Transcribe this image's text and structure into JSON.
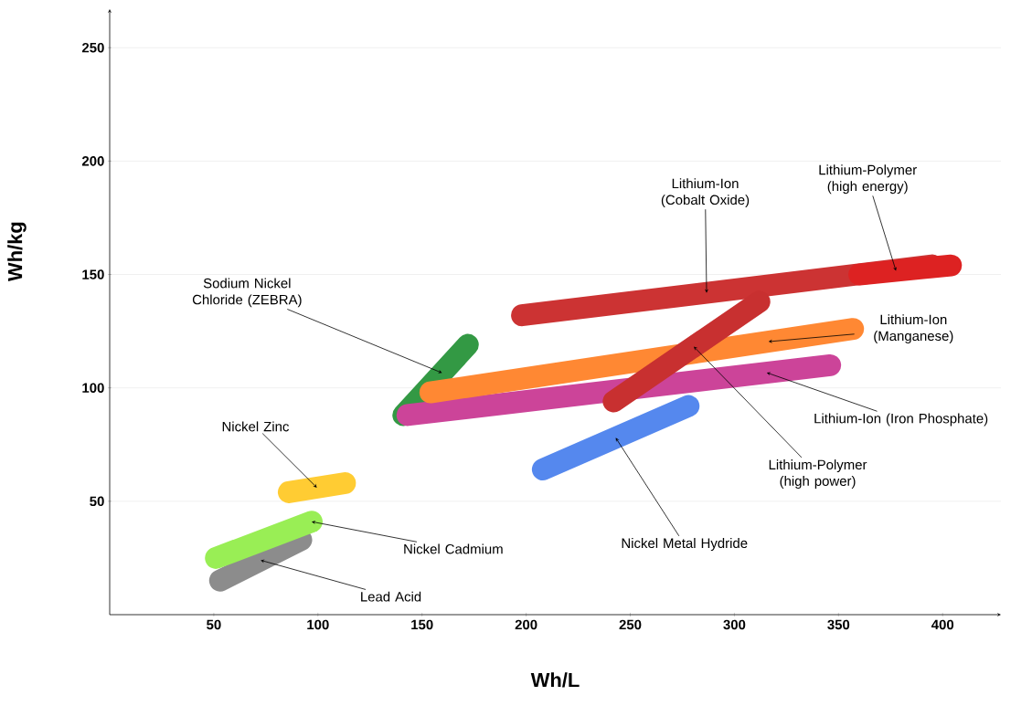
{
  "chart_data": {
    "type": "line",
    "xlabel": "Wh/L",
    "ylabel": "Wh/kg",
    "xlim": [
      0,
      428
    ],
    "ylim": [
      0,
      267
    ],
    "xticks": [
      50,
      100,
      150,
      200,
      250,
      300,
      350,
      400
    ],
    "yticks": [
      50,
      100,
      150,
      200,
      250
    ],
    "grid": "y",
    "line_style": "solid",
    "series": [
      {
        "name": "Lead Acid",
        "color": "#8c8c8c",
        "x": [
          53,
          92
        ],
        "values": [
          15,
          33
        ]
      },
      {
        "name": "Nickel Cadmium",
        "color": "#99ee55",
        "x": [
          51,
          97
        ],
        "values": [
          25,
          41
        ]
      },
      {
        "name": "Nickel Zinc",
        "color": "#ffcc33",
        "x": [
          86,
          113
        ],
        "values": [
          54,
          58
        ]
      },
      {
        "name": "Sodium Nickel Chloride (ZEBRA)",
        "color": "#339944",
        "x": [
          141,
          172
        ],
        "values": [
          88,
          119
        ]
      },
      {
        "name": "Lithium-Ion (Iron Phosphate)",
        "color": "#cc4499",
        "x": [
          143,
          346
        ],
        "values": [
          88,
          110
        ]
      },
      {
        "name": "Lithium-Ion (Manganese)",
        "color": "#ff8833",
        "x": [
          154,
          357
        ],
        "values": [
          98,
          126
        ]
      },
      {
        "name": "Lithium-Ion (Cobalt Oxide)",
        "color": "#cc3333",
        "x": [
          198,
          395
        ],
        "values": [
          132,
          154
        ]
      },
      {
        "name": "Lithium-Polymer (high power)",
        "color": "#c83030",
        "x": [
          242,
          312
        ],
        "values": [
          94,
          138
        ]
      },
      {
        "name": "Lithium-Polymer (high energy)",
        "color": "#dd2222",
        "x": [
          360,
          404
        ],
        "values": [
          150,
          154
        ]
      },
      {
        "name": "Nickel Metal Hydride",
        "color": "#5588ee",
        "x": [
          208,
          278
        ],
        "values": [
          64,
          92
        ]
      }
    ]
  }
}
